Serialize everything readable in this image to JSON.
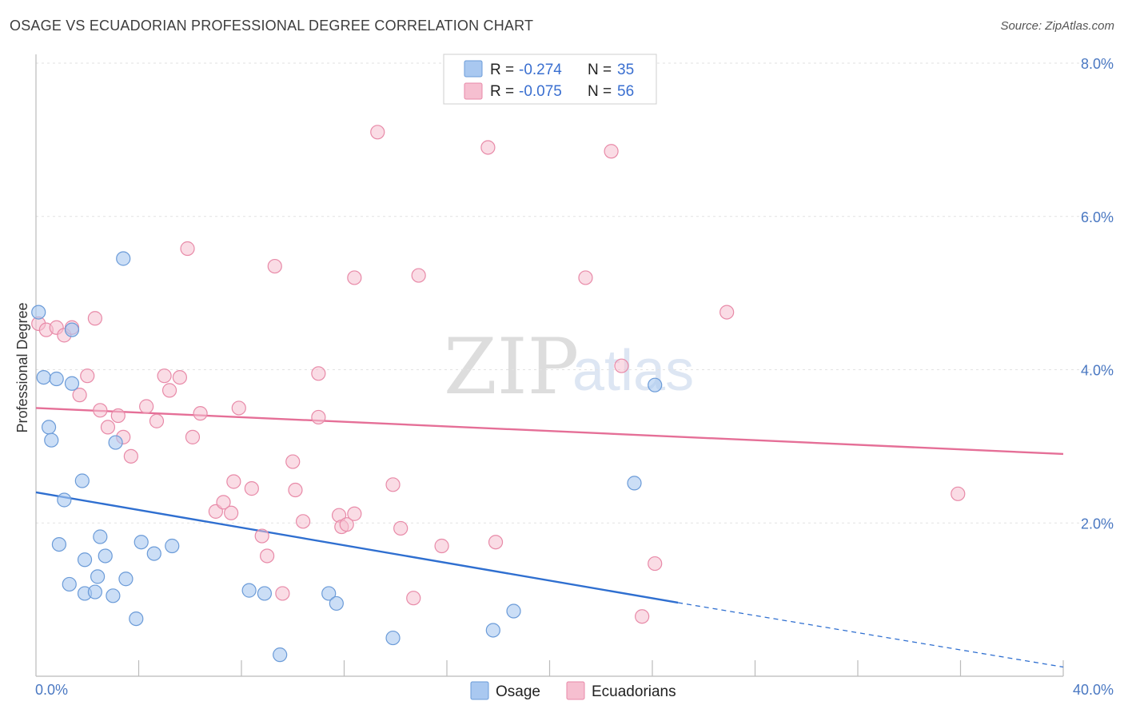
{
  "title": "OSAGE VS ECUADORIAN PROFESSIONAL DEGREE CORRELATION CHART",
  "source": "Source: ZipAtlas.com",
  "watermark": {
    "zip": "ZIP",
    "atlas": "atlas"
  },
  "colors": {
    "osage_fill": "#a9c8f0",
    "osage_stroke": "#6b9bd8",
    "osage_line": "#2f6fd0",
    "ecuadorian_fill": "#f6bfd0",
    "ecuadorian_stroke": "#e88aa8",
    "ecuadorian_line": "#e56f97",
    "tick_text": "#4a78c2",
    "grid": "#e2e2e2"
  },
  "legend": {
    "osage": {
      "r_label": "R =",
      "r_value": "-0.274",
      "n_label": "N =",
      "n_value": "35"
    },
    "ecuadorian": {
      "r_label": "R =",
      "r_value": "-0.075",
      "n_label": "N =",
      "n_value": "56"
    }
  },
  "bottom_legend": [
    "Osage",
    "Ecuadorians"
  ],
  "chart_data": {
    "type": "scatter",
    "title": "OSAGE VS ECUADORIAN PROFESSIONAL DEGREE CORRELATION CHART",
    "xlabel": "",
    "ylabel": "Professional Degree",
    "xlim": [
      0,
      40
    ],
    "ylim": [
      0,
      8.2
    ],
    "x_tick_labels": [
      "0.0%",
      "40.0%"
    ],
    "y_ticks": [
      2,
      4,
      6,
      8
    ],
    "y_tick_labels": [
      "2.0%",
      "4.0%",
      "6.0%",
      "8.0%"
    ],
    "grid": true,
    "series": [
      {
        "name": "Osage",
        "points": [
          [
            0.1,
            4.75
          ],
          [
            0.3,
            3.9
          ],
          [
            0.8,
            3.88
          ],
          [
            1.4,
            4.52
          ],
          [
            0.5,
            3.25
          ],
          [
            0.6,
            3.08
          ],
          [
            1.4,
            3.82
          ],
          [
            3.4,
            5.45
          ],
          [
            3.1,
            3.05
          ],
          [
            1.8,
            2.55
          ],
          [
            1.1,
            2.3
          ],
          [
            0.9,
            1.72
          ],
          [
            2.5,
            1.82
          ],
          [
            1.3,
            1.2
          ],
          [
            1.9,
            1.52
          ],
          [
            2.7,
            1.57
          ],
          [
            2.4,
            1.3
          ],
          [
            1.9,
            1.08
          ],
          [
            2.3,
            1.1
          ],
          [
            3.0,
            1.05
          ],
          [
            3.5,
            1.27
          ],
          [
            4.1,
            1.75
          ],
          [
            4.6,
            1.6
          ],
          [
            5.3,
            1.7
          ],
          [
            3.9,
            0.75
          ],
          [
            8.3,
            1.12
          ],
          [
            8.9,
            1.08
          ],
          [
            11.4,
            1.08
          ],
          [
            11.7,
            0.95
          ],
          [
            9.5,
            0.28
          ],
          [
            13.9,
            0.5
          ],
          [
            17.8,
            0.6
          ],
          [
            18.6,
            0.85
          ],
          [
            24.1,
            3.8
          ],
          [
            23.3,
            2.52
          ]
        ],
        "trend": {
          "x0": 0,
          "y0": 2.4,
          "x1": 25,
          "y1": 0.96,
          "dashed_to_x": 40,
          "dashed_to_y": 0.12
        }
      },
      {
        "name": "Ecuadorians",
        "points": [
          [
            0.1,
            4.6
          ],
          [
            0.4,
            4.52
          ],
          [
            0.8,
            4.55
          ],
          [
            1.1,
            4.45
          ],
          [
            1.4,
            4.55
          ],
          [
            2.3,
            4.67
          ],
          [
            1.7,
            3.67
          ],
          [
            2.0,
            3.92
          ],
          [
            2.5,
            3.47
          ],
          [
            2.8,
            3.25
          ],
          [
            3.2,
            3.4
          ],
          [
            3.4,
            3.12
          ],
          [
            3.7,
            2.87
          ],
          [
            4.3,
            3.52
          ],
          [
            4.7,
            3.33
          ],
          [
            5.0,
            3.92
          ],
          [
            5.2,
            3.73
          ],
          [
            5.6,
            3.9
          ],
          [
            5.9,
            5.58
          ],
          [
            6.1,
            3.12
          ],
          [
            6.4,
            3.43
          ],
          [
            7.0,
            2.15
          ],
          [
            7.3,
            2.27
          ],
          [
            7.6,
            2.13
          ],
          [
            7.7,
            2.54
          ],
          [
            7.9,
            3.5
          ],
          [
            8.4,
            2.45
          ],
          [
            8.8,
            1.83
          ],
          [
            9.0,
            1.57
          ],
          [
            9.6,
            1.08
          ],
          [
            9.3,
            5.35
          ],
          [
            10.0,
            2.8
          ],
          [
            10.1,
            2.43
          ],
          [
            10.4,
            2.02
          ],
          [
            11.0,
            3.95
          ],
          [
            11.0,
            3.38
          ],
          [
            11.8,
            2.1
          ],
          [
            11.9,
            1.95
          ],
          [
            12.1,
            1.98
          ],
          [
            12.4,
            2.12
          ],
          [
            12.4,
            5.2
          ],
          [
            13.3,
            7.1
          ],
          [
            13.9,
            2.5
          ],
          [
            14.2,
            1.93
          ],
          [
            14.7,
            1.02
          ],
          [
            14.9,
            5.23
          ],
          [
            15.8,
            1.7
          ],
          [
            17.6,
            6.9
          ],
          [
            17.9,
            1.75
          ],
          [
            21.4,
            5.2
          ],
          [
            22.4,
            6.85
          ],
          [
            22.8,
            4.05
          ],
          [
            23.6,
            0.78
          ],
          [
            24.1,
            1.47
          ],
          [
            26.9,
            4.75
          ],
          [
            35.9,
            2.38
          ]
        ],
        "trend": {
          "x0": 0,
          "y0": 3.5,
          "x1": 40,
          "y1": 2.9
        }
      }
    ]
  }
}
